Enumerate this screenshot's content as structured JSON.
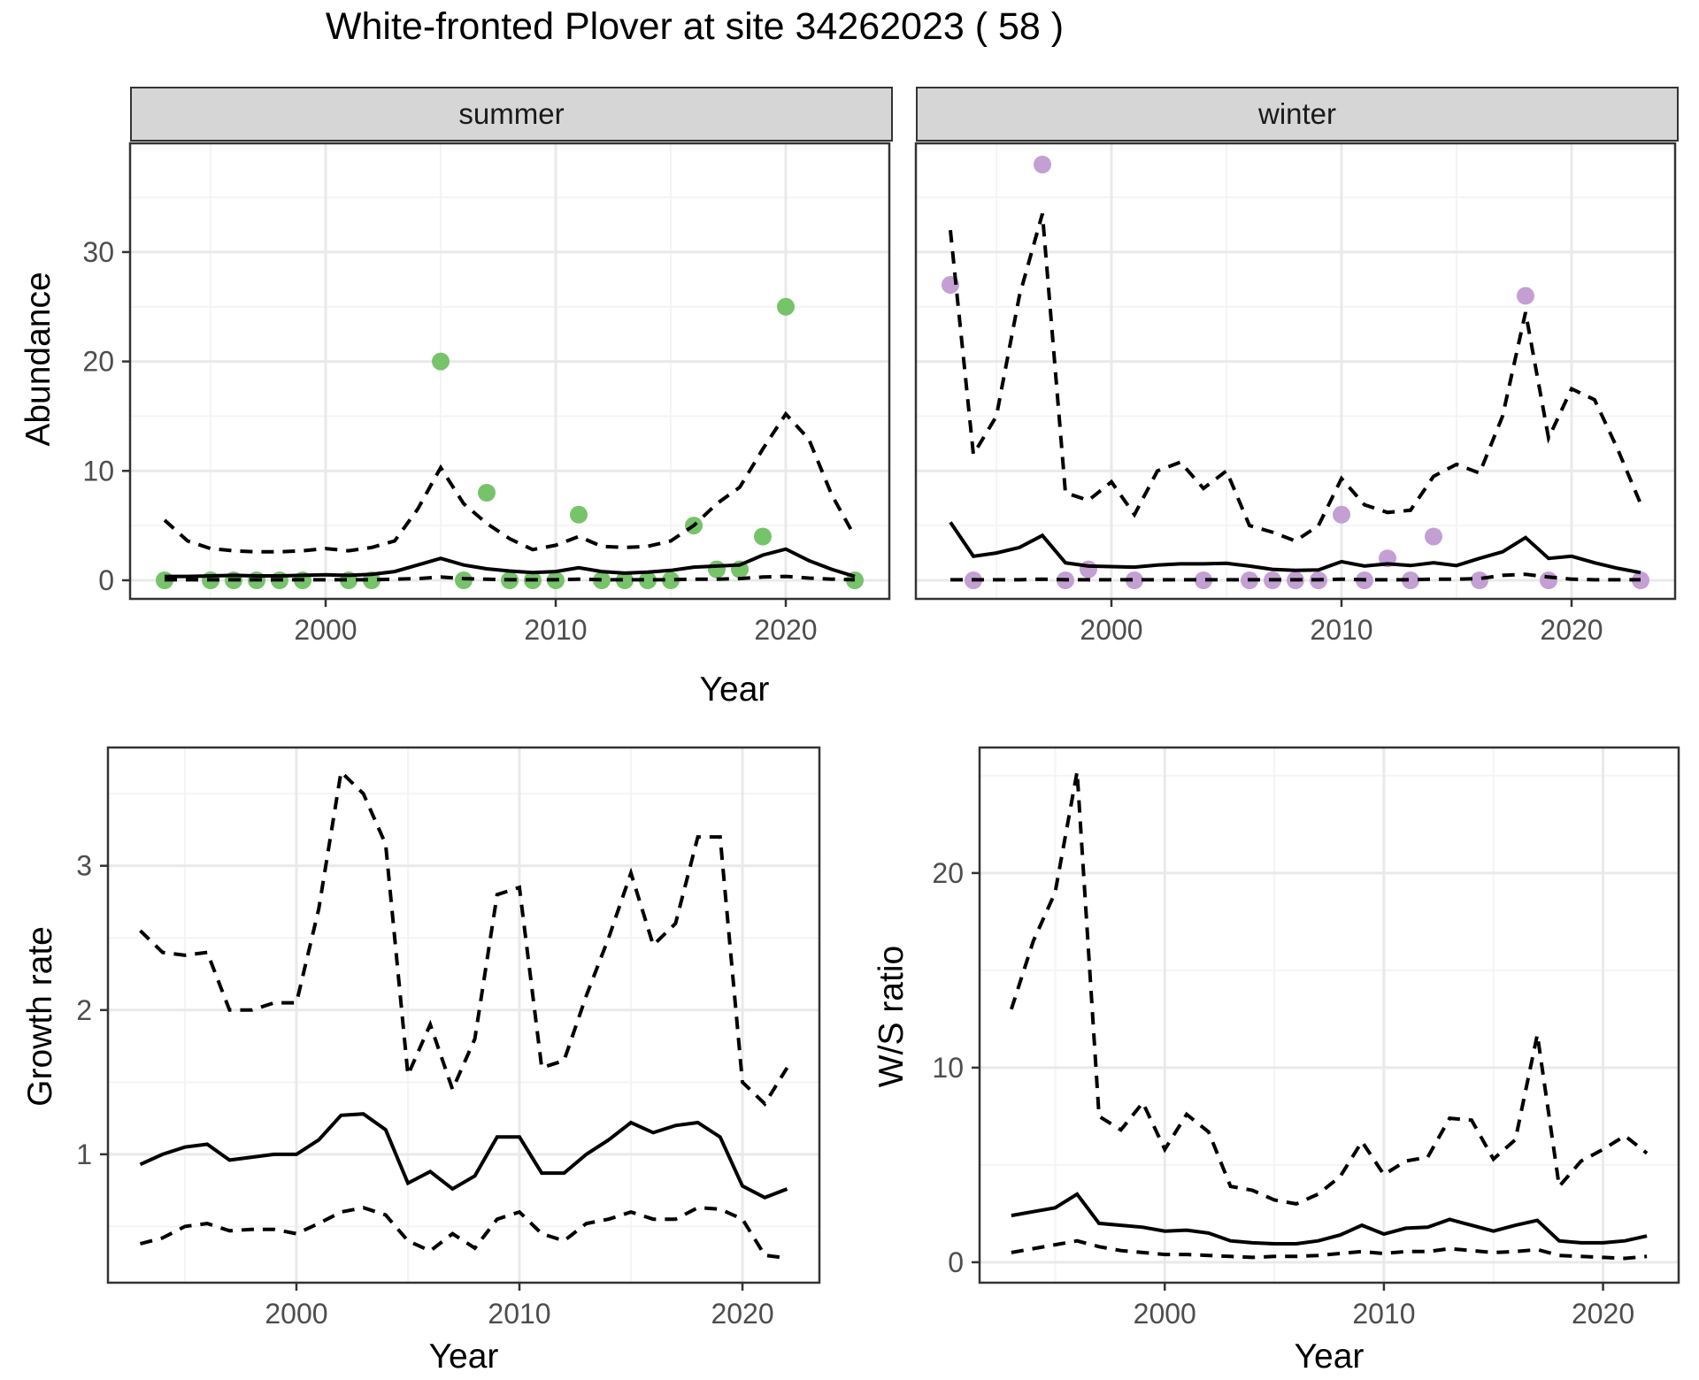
{
  "title": "White-fronted Plover at site 34262023 ( 58 )",
  "facets": {
    "summer": "summer",
    "winter": "winter"
  },
  "axes": {
    "x": "Year",
    "abundance": "Abundance",
    "growth": "Growth rate",
    "ws": "W/S ratio"
  },
  "colors": {
    "summer_points": "#76c36a",
    "winter_points": "#c39fd3",
    "line": "#000000",
    "strip_fill": "#d6d6d6",
    "panel_border": "#333333",
    "grid_major": "#e9e9e9",
    "grid_minor": "#f4f4f4",
    "tick_label": "#4d4d4d"
  },
  "chart_data": [
    {
      "id": "abundance-summer",
      "type": "line",
      "facet": "summer",
      "xlabel": "Year",
      "ylabel": "Abundance",
      "xlim": [
        1991.5,
        2024.5
      ],
      "ylim": [
        -1.7,
        39.94
      ],
      "xticks": [
        2000,
        2010,
        2020
      ],
      "xminor": [
        1995,
        2005,
        2015
      ],
      "yticks": [
        0,
        10,
        20,
        30
      ],
      "yminor": [
        5,
        15,
        25,
        35
      ],
      "show_y_labels": true,
      "grid": true,
      "legend": "none",
      "x": [
        1993,
        1994,
        1995,
        1996,
        1997,
        1998,
        1999,
        2000,
        2001,
        2002,
        2003,
        2004,
        2005,
        2006,
        2007,
        2008,
        2009,
        2010,
        2011,
        2012,
        2013,
        2014,
        2015,
        2016,
        2017,
        2018,
        2019,
        2020,
        2021,
        2022,
        2023
      ],
      "series": [
        {
          "name": "lower_ci",
          "style": "dashed",
          "values": [
            0.05,
            0.05,
            0.05,
            0.05,
            0.05,
            0.05,
            0.05,
            0.05,
            0.05,
            0.05,
            0.1,
            0.15,
            0.3,
            0.15,
            0.1,
            0.05,
            0.05,
            0.05,
            0.1,
            0.05,
            0.05,
            0.05,
            0.05,
            0.1,
            0.1,
            0.15,
            0.3,
            0.35,
            0.2,
            0.1,
            0.05
          ]
        },
        {
          "name": "mean",
          "style": "solid",
          "values": [
            0.35,
            0.35,
            0.4,
            0.45,
            0.4,
            0.4,
            0.45,
            0.5,
            0.45,
            0.55,
            0.8,
            1.4,
            2.0,
            1.4,
            1.05,
            0.85,
            0.7,
            0.8,
            1.15,
            0.8,
            0.65,
            0.75,
            0.9,
            1.2,
            1.3,
            1.4,
            2.3,
            2.85,
            1.8,
            1.0,
            0.35
          ]
        },
        {
          "name": "upper_ci",
          "style": "dashed",
          "values": [
            5.5,
            3.6,
            2.9,
            2.7,
            2.6,
            2.6,
            2.7,
            2.9,
            2.7,
            3.0,
            3.6,
            6.5,
            10.3,
            7.0,
            5.2,
            3.8,
            2.8,
            3.2,
            4.0,
            3.1,
            3.0,
            3.1,
            3.6,
            5.0,
            7.0,
            8.5,
            12.0,
            15.2,
            12.9,
            7.8,
            4.0
          ]
        }
      ],
      "points": {
        "color_key": "summer_points",
        "x": [
          1993,
          1995,
          1996,
          1997,
          1998,
          1999,
          2001,
          2002,
          2005,
          2006,
          2007,
          2008,
          2009,
          2010,
          2011,
          2012,
          2013,
          2014,
          2015,
          2016,
          2017,
          2018,
          2019,
          2020,
          2023
        ],
        "y": [
          0,
          0,
          0,
          0,
          0,
          0,
          0,
          0,
          20,
          0,
          8,
          0,
          0,
          0,
          6,
          0,
          0,
          0,
          0,
          5,
          1,
          1,
          4,
          25,
          0
        ]
      }
    },
    {
      "id": "abundance-winter",
      "type": "line",
      "facet": "winter",
      "xlabel": "Year",
      "ylabel": "Abundance",
      "xlim": [
        1991.5,
        2024.5
      ],
      "ylim": [
        -1.7,
        39.94
      ],
      "xticks": [
        2000,
        2010,
        2020
      ],
      "xminor": [
        1995,
        2005,
        2015
      ],
      "yticks": [
        0,
        10,
        20,
        30
      ],
      "yminor": [
        5,
        15,
        25,
        35
      ],
      "show_y_labels": false,
      "grid": true,
      "legend": "none",
      "x": [
        1993,
        1994,
        1995,
        1996,
        1997,
        1998,
        1999,
        2000,
        2001,
        2002,
        2003,
        2004,
        2005,
        2006,
        2007,
        2008,
        2009,
        2010,
        2011,
        2012,
        2013,
        2014,
        2015,
        2016,
        2017,
        2018,
        2019,
        2020,
        2021,
        2022,
        2023
      ],
      "series": [
        {
          "name": "lower_ci",
          "style": "dashed",
          "values": [
            0.05,
            0.05,
            0.05,
            0.05,
            0.1,
            0.05,
            0.05,
            0.05,
            0.05,
            0.05,
            0.05,
            0.05,
            0.05,
            0.05,
            0.05,
            0.05,
            0.05,
            0.1,
            0.05,
            0.05,
            0.05,
            0.1,
            0.1,
            0.15,
            0.45,
            0.55,
            0.3,
            0.1,
            0.05,
            0.05,
            0.05
          ]
        },
        {
          "name": "mean",
          "style": "solid",
          "values": [
            5.3,
            2.2,
            2.5,
            3.0,
            4.1,
            1.6,
            1.3,
            1.25,
            1.2,
            1.4,
            1.5,
            1.5,
            1.55,
            1.3,
            1.0,
            0.9,
            0.95,
            1.7,
            1.3,
            1.5,
            1.35,
            1.6,
            1.35,
            2.0,
            2.6,
            3.9,
            2.0,
            2.2,
            1.6,
            1.1,
            0.7
          ]
        },
        {
          "name": "upper_ci",
          "style": "dashed",
          "values": [
            32,
            11.5,
            15,
            26,
            33.5,
            8.0,
            7.3,
            9.0,
            6.0,
            10.0,
            10.8,
            8.4,
            10.0,
            5.0,
            4.4,
            3.6,
            5.0,
            9.3,
            6.9,
            6.2,
            6.4,
            9.5,
            10.6,
            9.8,
            15.0,
            24.5,
            13.0,
            17.5,
            16.5,
            12.0,
            7.0
          ]
        }
      ],
      "points": {
        "color_key": "winter_points",
        "x": [
          1993,
          1994,
          1997,
          1998,
          1999,
          2001,
          2004,
          2006,
          2007,
          2008,
          2009,
          2010,
          2011,
          2012,
          2013,
          2014,
          2016,
          2018,
          2019,
          2023
        ],
        "y": [
          27,
          0,
          38,
          0,
          1,
          0,
          0,
          0,
          0,
          0,
          0,
          6,
          0,
          2,
          0,
          4,
          0,
          26,
          0,
          0
        ]
      }
    },
    {
      "id": "growth-rate",
      "type": "line",
      "facet": null,
      "xlabel": "Year",
      "ylabel": "Growth rate",
      "xlim": [
        1991.55,
        2023.45
      ],
      "ylim": [
        0.11,
        3.82
      ],
      "xticks": [
        2000,
        2010,
        2020
      ],
      "xminor": [
        1995,
        2005,
        2015
      ],
      "yticks": [
        1,
        2,
        3
      ],
      "yminor": [
        0.5,
        1.5,
        2.5,
        3.5
      ],
      "show_y_labels": true,
      "grid": true,
      "legend": "none",
      "x": [
        1993,
        1994,
        1995,
        1996,
        1997,
        1998,
        1999,
        2000,
        2001,
        2002,
        2003,
        2004,
        2005,
        2006,
        2007,
        2008,
        2009,
        2010,
        2011,
        2012,
        2013,
        2014,
        2015,
        2016,
        2017,
        2018,
        2019,
        2020,
        2021,
        2022
      ],
      "series": [
        {
          "name": "lower_ci",
          "style": "dashed",
          "values": [
            0.38,
            0.42,
            0.5,
            0.52,
            0.47,
            0.48,
            0.48,
            0.45,
            0.52,
            0.6,
            0.63,
            0.58,
            0.4,
            0.33,
            0.45,
            0.35,
            0.55,
            0.6,
            0.45,
            0.4,
            0.52,
            0.55,
            0.6,
            0.55,
            0.55,
            0.63,
            0.62,
            0.55,
            0.3,
            0.28
          ]
        },
        {
          "name": "mean",
          "style": "solid",
          "values": [
            0.93,
            1.0,
            1.05,
            1.07,
            0.96,
            0.98,
            1.0,
            1.0,
            1.1,
            1.27,
            1.28,
            1.17,
            0.8,
            0.88,
            0.76,
            0.85,
            1.12,
            1.12,
            0.87,
            0.87,
            1.0,
            1.1,
            1.22,
            1.15,
            1.2,
            1.22,
            1.12,
            0.78,
            0.7,
            0.76
          ]
        },
        {
          "name": "upper_ci",
          "style": "dashed",
          "values": [
            2.55,
            2.4,
            2.38,
            2.4,
            2.0,
            2.0,
            2.05,
            2.05,
            2.7,
            3.65,
            3.5,
            3.15,
            1.55,
            1.9,
            1.45,
            1.8,
            2.8,
            2.85,
            1.6,
            1.65,
            2.1,
            2.5,
            2.95,
            2.45,
            2.6,
            3.2,
            3.2,
            1.5,
            1.35,
            1.6
          ]
        }
      ],
      "points": null
    },
    {
      "id": "ws-ratio",
      "type": "line",
      "facet": null,
      "xlabel": "Year",
      "ylabel": "W/S ratio",
      "xlim": [
        1991.55,
        2023.45
      ],
      "ylim": [
        -1.05,
        26.45
      ],
      "xticks": [
        2000,
        2010,
        2020
      ],
      "xminor": [
        1995,
        2005,
        2015
      ],
      "yticks": [
        0,
        10,
        20
      ],
      "yminor": [
        5,
        15,
        25
      ],
      "show_y_labels": true,
      "grid": true,
      "legend": "none",
      "x": [
        1993,
        1994,
        1995,
        1996,
        1997,
        1998,
        1999,
        2000,
        2001,
        2002,
        2003,
        2004,
        2005,
        2006,
        2007,
        2008,
        2009,
        2010,
        2011,
        2012,
        2013,
        2014,
        2015,
        2016,
        2017,
        2018,
        2019,
        2020,
        2021,
        2022
      ],
      "series": [
        {
          "name": "lower_ci",
          "style": "dashed",
          "values": [
            0.5,
            0.7,
            0.9,
            1.1,
            0.8,
            0.6,
            0.5,
            0.4,
            0.4,
            0.35,
            0.3,
            0.25,
            0.3,
            0.3,
            0.35,
            0.45,
            0.55,
            0.45,
            0.55,
            0.55,
            0.7,
            0.6,
            0.5,
            0.55,
            0.65,
            0.35,
            0.3,
            0.25,
            0.2,
            0.3
          ]
        },
        {
          "name": "mean",
          "style": "solid",
          "values": [
            2.4,
            2.6,
            2.8,
            3.5,
            2.0,
            1.9,
            1.8,
            1.6,
            1.65,
            1.5,
            1.1,
            1.0,
            0.95,
            0.95,
            1.1,
            1.4,
            1.9,
            1.45,
            1.75,
            1.8,
            2.2,
            1.9,
            1.6,
            1.9,
            2.15,
            1.1,
            1.0,
            1.0,
            1.1,
            1.35
          ]
        },
        {
          "name": "upper_ci",
          "style": "dashed",
          "values": [
            13,
            16.5,
            19,
            25.2,
            7.5,
            6.8,
            8.2,
            5.8,
            7.6,
            6.7,
            3.9,
            3.7,
            3.2,
            3.0,
            3.5,
            4.4,
            6.2,
            4.5,
            5.2,
            5.4,
            7.4,
            7.3,
            5.3,
            6.3,
            11.7,
            3.9,
            5.2,
            5.8,
            6.5,
            5.6
          ]
        }
      ],
      "points": null
    }
  ]
}
